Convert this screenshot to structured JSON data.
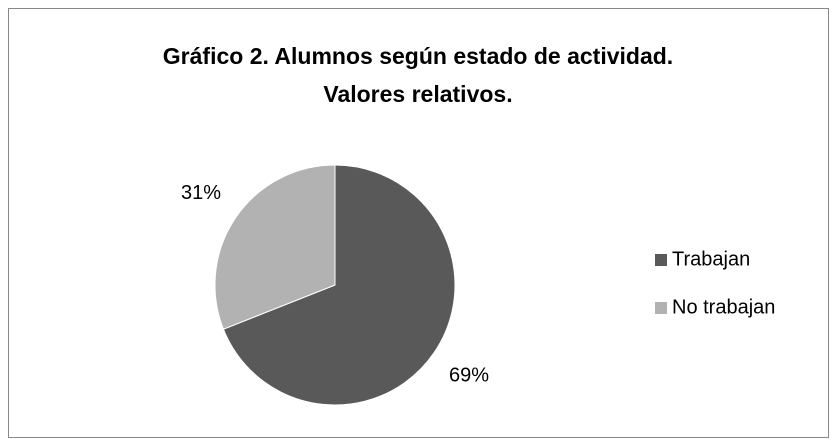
{
  "chart_data": {
    "type": "pie",
    "title": [
      "Gráfico 2. Alumnos según estado de actividad.",
      "Valores relativos."
    ],
    "categories": [
      "Trabajan",
      "No trabajan"
    ],
    "values": [
      69,
      31
    ],
    "value_labels": [
      "69%",
      "31%"
    ],
    "colors": [
      "#595959",
      "#b2b2b2"
    ],
    "legend": "right"
  }
}
